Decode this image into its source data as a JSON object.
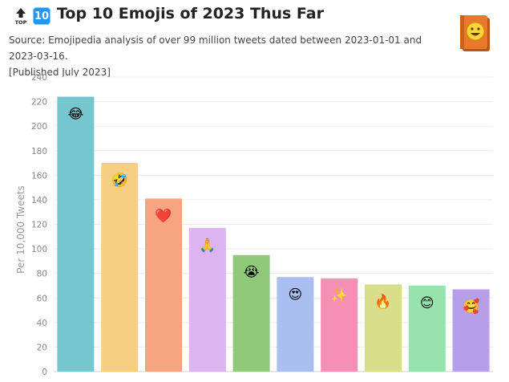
{
  "header": {
    "title": "Top 10 Emojis of 2023 Thus Far",
    "badge_icon": "top-arrow-icon",
    "number_badge": "10",
    "subtitle_line1": "Source: Emojipedia analysis of over 99 million tweets dated between 2023-01-01 and 2023-03-16.",
    "subtitle_line2": "[Published July 2023]",
    "logo_icon": "emojipedia-book-icon"
  },
  "chart_data": {
    "type": "bar",
    "title": "Top 10 Emojis of 2023 Thus Far",
    "ylabel": "Per 10,000 Tweets",
    "xlabel": "",
    "ylim": [
      0,
      240
    ],
    "yticks": [
      0,
      20,
      40,
      60,
      80,
      100,
      120,
      140,
      160,
      180,
      200,
      220,
      240
    ],
    "grid": true,
    "categories": [
      "😂",
      "🤣",
      "❤️",
      "🙏",
      "😭",
      "😍",
      "✨",
      "🔥",
      "😊",
      "🥰"
    ],
    "values": [
      224,
      170,
      141,
      117,
      95,
      77,
      76,
      71,
      70,
      67
    ],
    "colors": [
      "#76c6d0",
      "#f6cf82",
      "#f6a481",
      "#dcb4ef",
      "#90c97a",
      "#a9bff2",
      "#f68fb4",
      "#d8de8a",
      "#98e2ad",
      "#b79ee9"
    ]
  }
}
